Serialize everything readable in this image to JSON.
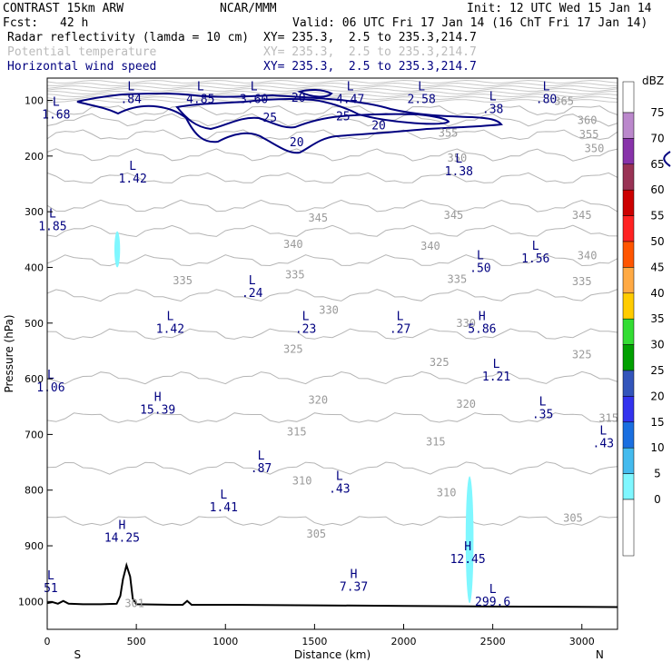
{
  "header": {
    "model": "CONTRAST 15km ARW",
    "org": "NCAR/MMM",
    "init": "Init: 12 UTC Wed 15 Jan 14",
    "fcst_label": "Fcst:",
    "fcst_value": "42 h",
    "valid": "Valid: 06 UTC Fri 17 Jan 14 (16 ChT Fri 17 Jan 14)",
    "fields": [
      {
        "name": "Radar reflectivity (lamda = 10 cm)",
        "xy": "XY= 235.3,  2.5 to 235.3,214.7",
        "color": "#000000"
      },
      {
        "name": "Potential temperature",
        "xy": "XY= 235.3,  2.5 to 235.3,214.7",
        "color": "#bbbbbb"
      },
      {
        "name": "Horizontal wind speed",
        "xy": "XY= 235.3,  2.5 to 235.3,214.7",
        "color": "#000080"
      }
    ]
  },
  "chart_data": {
    "type": "cross-section",
    "xlabel": "Distance (km)",
    "ylabel": "Pressure (hPa)",
    "xlim": [
      0,
      3200
    ],
    "ylim": [
      1050,
      60
    ],
    "x_ticks": [
      0,
      500,
      1000,
      1500,
      2000,
      2500,
      3000
    ],
    "y_ticks": [
      100,
      200,
      300,
      400,
      500,
      600,
      700,
      800,
      900,
      1000
    ],
    "x_end_labels": {
      "left": "S",
      "right": "N"
    },
    "colorbar": {
      "unit": "dBZ",
      "levels": [
        0,
        5,
        10,
        15,
        20,
        25,
        30,
        35,
        40,
        45,
        50,
        55,
        60,
        65,
        70,
        75
      ],
      "colors": [
        "#ffffff",
        "#7ff7ff",
        "#44bbee",
        "#1a6fe0",
        "#3333ee",
        "#3355bb",
        "#00a000",
        "#33dd33",
        "#ffcc00",
        "#ffaa44",
        "#ff5500",
        "#ff2222",
        "#cc0000",
        "#993355",
        "#8833aa",
        "#bb88cc"
      ]
    },
    "theta_contours": [
      {
        "value": "365",
        "p": 118
      },
      {
        "value": "360",
        "p": 135
      },
      {
        "value": "355",
        "p": 162
      },
      {
        "value": "350",
        "p": 198
      },
      {
        "value": "345",
        "p": 240
      },
      {
        "value": "340",
        "p": 290
      },
      {
        "value": "335",
        "p": 335
      },
      {
        "value": "330",
        "p": 388
      },
      {
        "value": "325",
        "p": 450
      },
      {
        "value": "320",
        "p": 520
      },
      {
        "value": "315",
        "p": 598
      },
      {
        "value": "310",
        "p": 670
      },
      {
        "value": "305",
        "p": 760
      },
      {
        "value": "301",
        "p": 855
      }
    ],
    "theta_labels": [
      {
        "text": "365",
        "x": 2900,
        "p": 108
      },
      {
        "text": "360",
        "x": 3030,
        "p": 142
      },
      {
        "text": "355",
        "x": 2250,
        "p": 165
      },
      {
        "text": "355",
        "x": 3040,
        "p": 168
      },
      {
        "text": "350",
        "x": 3070,
        "p": 193
      },
      {
        "text": "350",
        "x": 2300,
        "p": 210
      },
      {
        "text": "345",
        "x": 1520,
        "p": 318
      },
      {
        "text": "345",
        "x": 2280,
        "p": 313
      },
      {
        "text": "345",
        "x": 3000,
        "p": 313
      },
      {
        "text": "340",
        "x": 1380,
        "p": 365
      },
      {
        "text": "340",
        "x": 2150,
        "p": 368
      },
      {
        "text": "340",
        "x": 3030,
        "p": 385
      },
      {
        "text": "335",
        "x": 760,
        "p": 430
      },
      {
        "text": "335",
        "x": 1390,
        "p": 420
      },
      {
        "text": "335",
        "x": 2300,
        "p": 428
      },
      {
        "text": "335",
        "x": 3000,
        "p": 432
      },
      {
        "text": "330",
        "x": 1580,
        "p": 483
      },
      {
        "text": "330",
        "x": 2350,
        "p": 507
      },
      {
        "text": "325",
        "x": 1380,
        "p": 553
      },
      {
        "text": "325",
        "x": 2200,
        "p": 577
      },
      {
        "text": "325",
        "x": 3000,
        "p": 563
      },
      {
        "text": "320",
        "x": 1520,
        "p": 645
      },
      {
        "text": "320",
        "x": 2350,
        "p": 652
      },
      {
        "text": "315",
        "x": 1400,
        "p": 702
      },
      {
        "text": "315",
        "x": 2180,
        "p": 720
      },
      {
        "text": "315",
        "x": 3150,
        "p": 677
      },
      {
        "text": "310",
        "x": 1430,
        "p": 790
      },
      {
        "text": "310",
        "x": 2240,
        "p": 811
      },
      {
        "text": "305",
        "x": 1510,
        "p": 885
      },
      {
        "text": "305",
        "x": 2950,
        "p": 857
      },
      {
        "text": "301",
        "x": 490,
        "p": 1010
      }
    ],
    "wind_contour_labels": [
      {
        "text": "20",
        "x": 1410,
        "p": 102
      },
      {
        "text": "25",
        "x": 1250,
        "p": 138
      },
      {
        "text": "25",
        "x": 1660,
        "p": 136
      },
      {
        "text": "20",
        "x": 1860,
        "p": 152
      },
      {
        "text": "20",
        "x": 1400,
        "p": 182
      }
    ],
    "extrema": [
      {
        "type": "L",
        "value": ".84",
        "x": 470,
        "p": 82
      },
      {
        "type": "L",
        "value": "4.85",
        "x": 860,
        "p": 82
      },
      {
        "type": "L",
        "value": "3.60",
        "x": 1160,
        "p": 82
      },
      {
        "type": "L",
        "value": "4.47",
        "x": 1700,
        "p": 82
      },
      {
        "type": "L",
        "value": "2.58",
        "x": 2100,
        "p": 82
      },
      {
        "type": "L",
        "value": ".38",
        "x": 2500,
        "p": 100
      },
      {
        "type": "L",
        "value": ".80",
        "x": 2800,
        "p": 82
      },
      {
        "type": "L",
        "value": "1.68",
        "x": 50,
        "p": 110
      },
      {
        "type": "L",
        "value": "1.42",
        "x": 480,
        "p": 225
      },
      {
        "type": "L",
        "value": "1.38",
        "x": 2310,
        "p": 212
      },
      {
        "type": "L",
        "value": "1.85",
        "x": 30,
        "p": 310
      },
      {
        "type": "L",
        "value": "1.56",
        "x": 2740,
        "p": 368
      },
      {
        "type": "L",
        "value": ".50",
        "x": 2430,
        "p": 385
      },
      {
        "type": "L",
        "value": ".24",
        "x": 1150,
        "p": 430
      },
      {
        "type": "L",
        "value": "1.42",
        "x": 690,
        "p": 495
      },
      {
        "type": "L",
        "value": ".23",
        "x": 1450,
        "p": 495
      },
      {
        "type": "L",
        "value": ".27",
        "x": 1980,
        "p": 495
      },
      {
        "type": "H",
        "value": "5.86",
        "x": 2440,
        "p": 495
      },
      {
        "type": "L",
        "value": "1.21",
        "x": 2520,
        "p": 580
      },
      {
        "type": "L",
        "value": "1.06",
        "x": 20,
        "p": 600
      },
      {
        "type": "H",
        "value": "15.39",
        "x": 620,
        "p": 640
      },
      {
        "type": "L",
        "value": ".35",
        "x": 2780,
        "p": 648
      },
      {
        "type": "L",
        "value": ".43",
        "x": 3120,
        "p": 700
      },
      {
        "type": "L",
        "value": ".87",
        "x": 1200,
        "p": 745
      },
      {
        "type": "L",
        "value": ".43",
        "x": 1640,
        "p": 782
      },
      {
        "type": "L",
        "value": "1.41",
        "x": 990,
        "p": 815
      },
      {
        "type": "H",
        "value": "14.25",
        "x": 420,
        "p": 870
      },
      {
        "type": "L",
        "value": "51",
        "x": 20,
        "p": 960
      },
      {
        "type": "H",
        "value": "12.45",
        "x": 2360,
        "p": 908
      },
      {
        "type": "H",
        "value": "7.37",
        "x": 1720,
        "p": 958
      },
      {
        "type": "L",
        "value": "299.6",
        "x": 2500,
        "p": 985
      }
    ],
    "reflectivity_cells": [
      {
        "x": 393,
        "p_top": 335,
        "p_bot": 400,
        "half_width_km": 16
      },
      {
        "x": 2370,
        "p_top": 775,
        "p_bot": 1003,
        "half_width_km": 22
      }
    ],
    "terrain_pressure": [
      {
        "x": 0,
        "p": 1003
      },
      {
        "x": 30,
        "p": 1001
      },
      {
        "x": 60,
        "p": 1004
      },
      {
        "x": 90,
        "p": 999
      },
      {
        "x": 120,
        "p": 1004
      },
      {
        "x": 200,
        "p": 1005
      },
      {
        "x": 300,
        "p": 1005
      },
      {
        "x": 390,
        "p": 1004
      },
      {
        "x": 410,
        "p": 990
      },
      {
        "x": 425,
        "p": 960
      },
      {
        "x": 445,
        "p": 935
      },
      {
        "x": 465,
        "p": 955
      },
      {
        "x": 480,
        "p": 995
      },
      {
        "x": 500,
        "p": 1005
      },
      {
        "x": 700,
        "p": 1006
      },
      {
        "x": 760,
        "p": 1006
      },
      {
        "x": 785,
        "p": 999
      },
      {
        "x": 810,
        "p": 1006
      },
      {
        "x": 1000,
        "p": 1006
      },
      {
        "x": 1500,
        "p": 1007
      },
      {
        "x": 2000,
        "p": 1008
      },
      {
        "x": 2500,
        "p": 1009
      },
      {
        "x": 3200,
        "p": 1010
      }
    ]
  }
}
